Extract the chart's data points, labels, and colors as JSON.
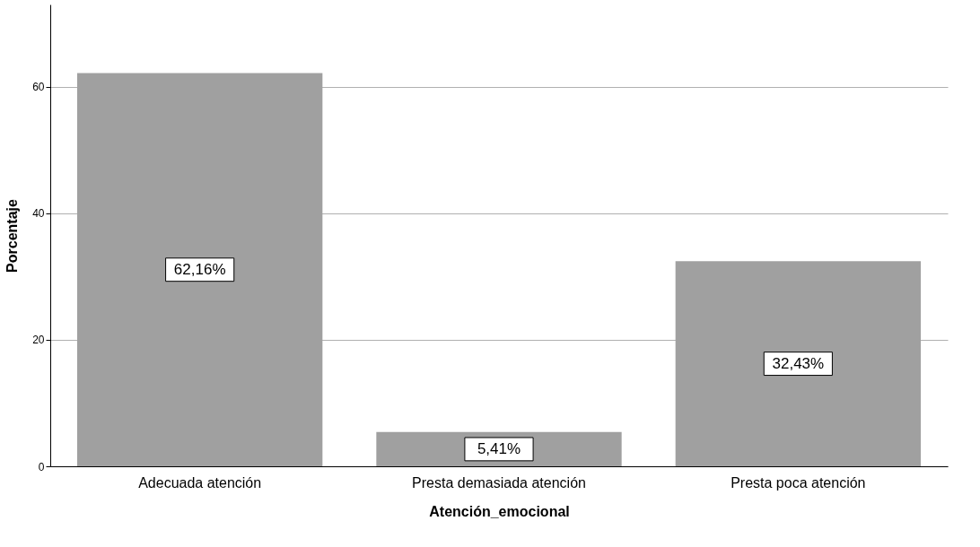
{
  "chart_data": {
    "type": "bar",
    "xlabel": "Atención_emocional",
    "ylabel": "Porcentaje",
    "categories": [
      "Adecuada atención",
      "Presta demasiada atención",
      "Presta poca atención"
    ],
    "values": [
      62.16,
      5.41,
      32.43
    ],
    "value_labels": [
      "62,16%",
      "5,41%",
      "32,43%"
    ],
    "color": "#a0a0a0",
    "ylim": [
      0,
      73
    ],
    "yticks": [
      0,
      20,
      40,
      60
    ],
    "grid": "y"
  }
}
